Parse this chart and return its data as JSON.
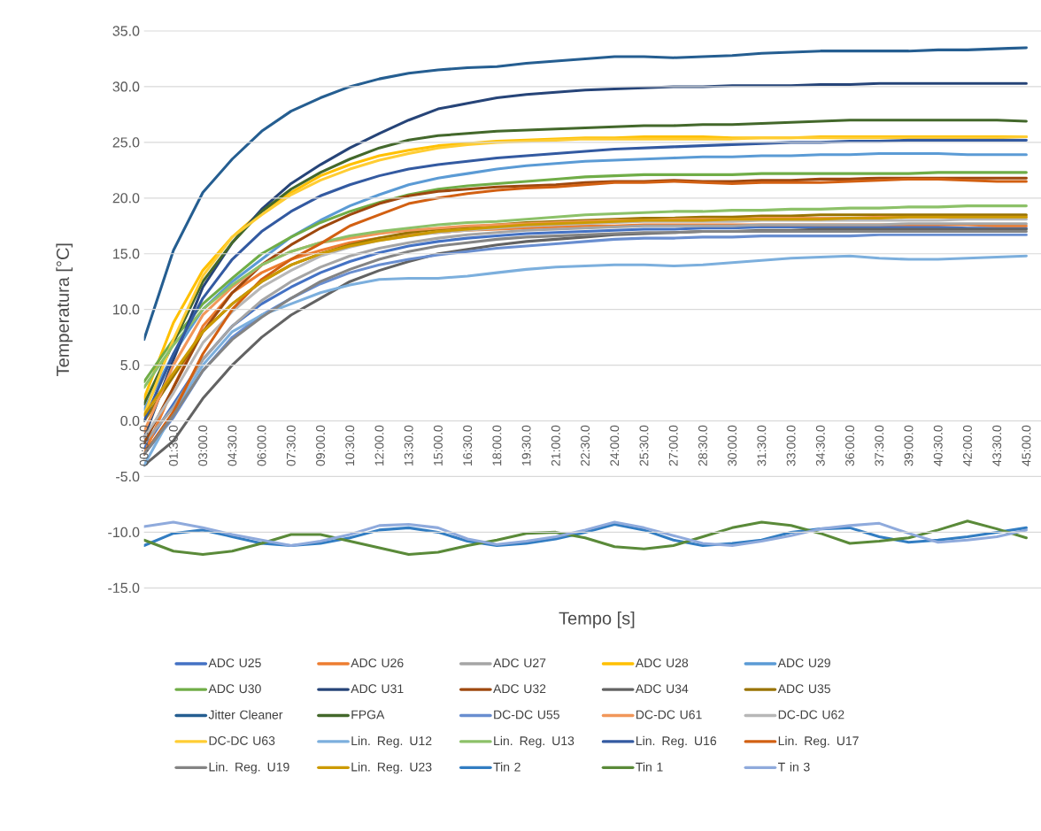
{
  "chart_data": {
    "type": "line",
    "xlabel": "Tempo [s]",
    "ylabel": "Temperatura [°C]",
    "ylim": [
      -15,
      35
    ],
    "categories": [
      "00:00.0",
      "01:30.0",
      "03:00.0",
      "04:30.0",
      "06:00.0",
      "07:30.0",
      "09:00.0",
      "10:30.0",
      "12:00.0",
      "13:30.0",
      "15:00.0",
      "16:30.0",
      "18:00.0",
      "19:30.0",
      "21:00.0",
      "22:30.0",
      "24:00.0",
      "25:30.0",
      "27:00.0",
      "28:30.0",
      "30:00.0",
      "31:30.0",
      "33:00.0",
      "34:30.0",
      "36:00.0",
      "37:30.0",
      "39:00.0",
      "40:30.0",
      "42:00.0",
      "43:30.0",
      "45:00.0"
    ],
    "yticks": [
      {
        "value": -15,
        "label": "-15.0"
      },
      {
        "value": -10,
        "label": "-10.0"
      },
      {
        "value": -5,
        "label": "-5.0"
      },
      {
        "value": 0,
        "label": "0.0"
      },
      {
        "value": 5,
        "label": "5.0"
      },
      {
        "value": 10,
        "label": "10.0"
      },
      {
        "value": 15,
        "label": "15.0"
      },
      {
        "value": 20,
        "label": "20.0"
      },
      {
        "value": 25,
        "label": "25.0"
      },
      {
        "value": 30,
        "label": "30.0"
      },
      {
        "value": 35,
        "label": "35.0"
      }
    ],
    "grid": "y",
    "legend": "bottom",
    "series": [
      {
        "name": "ADC U25",
        "color": "#4472c4",
        "values": [
          -2.5,
          1.5,
          5.5,
          8.5,
          10.5,
          12,
          13.3,
          14.3,
          15.1,
          15.7,
          16.1,
          16.4,
          16.6,
          16.8,
          16.9,
          17,
          17.1,
          17.2,
          17.2,
          17.3,
          17.3,
          17.4,
          17.4,
          17.4,
          17.4,
          17.4,
          17.4,
          17.4,
          17.3,
          17.3,
          17.3
        ]
      },
      {
        "name": "ADC U26",
        "color": "#ed7d31",
        "values": [
          -3,
          3,
          8.5,
          11.5,
          13.3,
          14.5,
          15.3,
          16,
          16.4,
          16.7,
          16.9,
          17.1,
          17.2,
          17.3,
          17.4,
          17.5,
          17.5,
          17.6,
          17.6,
          17.6,
          17.6,
          17.6,
          17.6,
          17.6,
          17.6,
          17.6,
          17.6,
          17.6,
          17.6,
          17.5,
          17.5
        ]
      },
      {
        "name": "ADC U27",
        "color": "#a5a5a5",
        "values": [
          -2,
          1.2,
          5.5,
          8.5,
          10.8,
          12.5,
          13.8,
          14.8,
          15.5,
          16,
          16.4,
          16.7,
          16.9,
          17.1,
          17.2,
          17.3,
          17.4,
          17.5,
          17.5,
          17.5,
          17.5,
          17.6,
          17.6,
          17.6,
          17.6,
          17.6,
          17.7,
          17.7,
          17.7,
          17.7,
          17.7
        ]
      },
      {
        "name": "ADC U28",
        "color": "#ffc000",
        "values": [
          2,
          8.8,
          13.5,
          16.5,
          18.8,
          20.5,
          22,
          23,
          23.8,
          24.3,
          24.7,
          24.9,
          25.1,
          25.2,
          25.3,
          25.4,
          25.4,
          25.5,
          25.5,
          25.5,
          25.4,
          25.4,
          25.4,
          25.5,
          25.5,
          25.5,
          25.5,
          25.5,
          25.5,
          25.5,
          25.5
        ]
      },
      {
        "name": "ADC U29",
        "color": "#5b9bd5",
        "values": [
          1,
          6,
          10,
          12.5,
          14.5,
          16.5,
          18,
          19.3,
          20.3,
          21.2,
          21.8,
          22.2,
          22.6,
          22.9,
          23.1,
          23.3,
          23.4,
          23.5,
          23.6,
          23.7,
          23.7,
          23.8,
          23.8,
          23.9,
          23.9,
          24,
          24,
          24,
          23.9,
          23.9,
          23.9
        ]
      },
      {
        "name": "ADC U30",
        "color": "#70ad47",
        "values": [
          3.5,
          7.3,
          10.5,
          12.8,
          15,
          16.5,
          17.8,
          18.8,
          19.6,
          20.3,
          20.8,
          21.1,
          21.3,
          21.5,
          21.7,
          21.9,
          22,
          22.1,
          22.1,
          22.1,
          22.1,
          22.2,
          22.2,
          22.2,
          22.2,
          22.2,
          22.2,
          22.3,
          22.3,
          22.3,
          22.3
        ]
      },
      {
        "name": "ADC U31",
        "color": "#264478",
        "values": [
          -1.5,
          5.5,
          12,
          16,
          19,
          21.3,
          23,
          24.5,
          25.8,
          27,
          28,
          28.5,
          29,
          29.3,
          29.5,
          29.7,
          29.8,
          29.9,
          30,
          30,
          30.1,
          30.1,
          30.1,
          30.2,
          30.2,
          30.3,
          30.3,
          30.3,
          30.3,
          30.3,
          30.3
        ]
      },
      {
        "name": "ADC U32",
        "color": "#9e480e",
        "values": [
          -2,
          3,
          8,
          11.5,
          14,
          15.8,
          17.3,
          18.5,
          19.5,
          20.2,
          20.6,
          20.8,
          21,
          21.1,
          21.2,
          21.4,
          21.5,
          21.5,
          21.6,
          21.5,
          21.5,
          21.6,
          21.6,
          21.7,
          21.7,
          21.8,
          21.8,
          21.8,
          21.8,
          21.8,
          21.8
        ]
      },
      {
        "name": "ADC U34",
        "color": "#636363",
        "values": [
          -4,
          -1.8,
          2,
          5,
          7.5,
          9.5,
          11,
          12.5,
          13.5,
          14.3,
          15,
          15.4,
          15.8,
          16.1,
          16.3,
          16.5,
          16.7,
          16.8,
          16.9,
          17,
          17,
          17.1,
          17.1,
          17.2,
          17.2,
          17.2,
          17.2,
          17.2,
          17.2,
          17.2,
          17.2
        ]
      },
      {
        "name": "ADC U35",
        "color": "#997300",
        "values": [
          0,
          4,
          8,
          10.5,
          12.5,
          14,
          15,
          15.8,
          16.4,
          16.9,
          17.2,
          17.4,
          17.6,
          17.8,
          17.9,
          18,
          18.1,
          18.2,
          18.2,
          18.3,
          18.3,
          18.4,
          18.4,
          18.5,
          18.5,
          18.5,
          18.5,
          18.5,
          18.5,
          18.5,
          18.5
        ]
      },
      {
        "name": "Jitter Cleaner",
        "color": "#255e91",
        "values": [
          7.3,
          15.3,
          20.5,
          23.5,
          26,
          27.8,
          29,
          30,
          30.7,
          31.2,
          31.5,
          31.7,
          31.8,
          32.1,
          32.3,
          32.5,
          32.7,
          32.7,
          32.6,
          32.7,
          32.8,
          33,
          33.1,
          33.2,
          33.2,
          33.2,
          33.2,
          33.3,
          33.3,
          33.4,
          33.5
        ]
      },
      {
        "name": "FPGA",
        "color": "#43682b",
        "values": [
          1.5,
          7,
          12.5,
          16,
          18.8,
          20.8,
          22.3,
          23.5,
          24.5,
          25.2,
          25.6,
          25.8,
          26,
          26.1,
          26.2,
          26.3,
          26.4,
          26.5,
          26.5,
          26.6,
          26.6,
          26.7,
          26.8,
          26.9,
          27,
          27,
          27,
          27,
          27,
          27,
          26.9
        ]
      },
      {
        "name": "DC-DC U55",
        "color": "#698ed0",
        "values": [
          -3,
          0.3,
          4.5,
          7.5,
          9.5,
          11,
          12.3,
          13.3,
          14,
          14.5,
          14.9,
          15.2,
          15.5,
          15.7,
          15.9,
          16.1,
          16.3,
          16.4,
          16.4,
          16.5,
          16.5,
          16.6,
          16.6,
          16.6,
          16.6,
          16.7,
          16.7,
          16.7,
          16.7,
          16.7,
          16.7
        ]
      },
      {
        "name": "DC-DC U61",
        "color": "#f1975a",
        "values": [
          -1,
          5,
          9.5,
          12,
          14,
          15.2,
          16,
          16.4,
          16.8,
          17.1,
          17.3,
          17.5,
          17.6,
          17.7,
          17.8,
          17.9,
          18,
          18,
          18.1,
          18.1,
          18.1,
          18.2,
          18.2,
          18.2,
          18.2,
          18.3,
          18.3,
          18.3,
          18.3,
          18.3,
          18.3
        ]
      },
      {
        "name": "DC-DC U62",
        "color": "#b7b7b7",
        "values": [
          -1.5,
          2.5,
          7,
          9.8,
          12,
          13.5,
          14.8,
          15.6,
          16.2,
          16.6,
          16.9,
          17.1,
          17.3,
          17.5,
          17.6,
          17.7,
          17.8,
          17.9,
          17.9,
          17.9,
          17.9,
          18,
          18,
          18,
          18,
          18,
          18,
          18,
          18.1,
          18.1,
          18.1
        ]
      },
      {
        "name": "DC-DC U63",
        "color": "#ffcd33",
        "values": [
          0.5,
          7.3,
          13,
          16.5,
          18.5,
          20.3,
          21.6,
          22.6,
          23.4,
          24,
          24.5,
          24.8,
          25,
          25.1,
          25.2,
          25.3,
          25.3,
          25.3,
          25.3,
          25.3,
          25.3,
          25.4,
          25.4,
          25.4,
          25.4,
          25.4,
          25.4,
          25.4,
          25.4,
          25.4,
          25.5
        ]
      },
      {
        "name": "Lin. Reg. U12",
        "color": "#7cafdd",
        "values": [
          -4,
          0.8,
          5,
          8,
          9.5,
          10.5,
          11.5,
          12.2,
          12.7,
          12.8,
          12.8,
          13,
          13.3,
          13.6,
          13.8,
          13.9,
          14,
          14,
          13.9,
          14,
          14.2,
          14.4,
          14.6,
          14.7,
          14.8,
          14.6,
          14.5,
          14.5,
          14.6,
          14.7,
          14.8
        ]
      },
      {
        "name": "Lin. Reg. U13",
        "color": "#8cc168",
        "values": [
          3,
          6.8,
          10,
          12.2,
          14,
          15.2,
          16,
          16.6,
          17,
          17.3,
          17.6,
          17.8,
          17.9,
          18.1,
          18.3,
          18.5,
          18.6,
          18.7,
          18.8,
          18.8,
          18.9,
          18.9,
          19,
          19,
          19.1,
          19.1,
          19.2,
          19.2,
          19.3,
          19.3,
          19.3
        ]
      },
      {
        "name": "Lin. Reg. U16",
        "color": "#335aa1",
        "values": [
          0,
          6,
          11,
          14.5,
          17,
          18.8,
          20.2,
          21.2,
          22,
          22.6,
          23,
          23.3,
          23.6,
          23.8,
          24,
          24.2,
          24.4,
          24.5,
          24.6,
          24.7,
          24.8,
          24.9,
          25,
          25,
          25.1,
          25.1,
          25.2,
          25.2,
          25.2,
          25.2,
          25.2
        ]
      },
      {
        "name": "Lin. Reg. U17",
        "color": "#d26012",
        "values": [
          -3,
          0.8,
          6,
          10,
          12.7,
          14.5,
          15.9,
          17.5,
          18.5,
          19.5,
          20,
          20.4,
          20.7,
          20.9,
          21,
          21.2,
          21.4,
          21.4,
          21.5,
          21.4,
          21.3,
          21.4,
          21.4,
          21.4,
          21.5,
          21.6,
          21.7,
          21.7,
          21.6,
          21.5,
          21.5
        ]
      },
      {
        "name": "Lin. Reg. U19",
        "color": "#848484",
        "values": [
          -3,
          0.5,
          4.5,
          7.3,
          9.3,
          11,
          12.5,
          13.6,
          14.5,
          15.2,
          15.7,
          16,
          16.3,
          16.5,
          16.6,
          16.7,
          16.8,
          16.9,
          16.9,
          17,
          17,
          17,
          17,
          17,
          17,
          17,
          17,
          17,
          17,
          17,
          17
        ]
      },
      {
        "name": "Lin. Reg. U23",
        "color": "#cc9a00",
        "values": [
          0.5,
          4.3,
          8,
          10.5,
          12.5,
          14,
          15,
          15.7,
          16.2,
          16.6,
          17,
          17.2,
          17.4,
          17.6,
          17.7,
          17.8,
          17.9,
          18,
          18,
          18,
          18.1,
          18.1,
          18.1,
          18.1,
          18.2,
          18.2,
          18.3,
          18.3,
          18.3,
          18.3,
          18.3
        ]
      },
      {
        "name": "Tin 2",
        "color": "#327dc2",
        "values": [
          -11.2,
          -10.1,
          -9.8,
          -10.4,
          -11,
          -11.2,
          -11,
          -10.5,
          -9.8,
          -9.6,
          -10,
          -10.8,
          -11.2,
          -11,
          -10.6,
          -10,
          -9.3,
          -9.8,
          -10.7,
          -11.2,
          -11,
          -10.7,
          -10,
          -9.7,
          -9.6,
          -10.4,
          -10.9,
          -10.7,
          -10.4,
          -10,
          -9.6
        ]
      },
      {
        "name": "Tin 1",
        "color": "#5a8a39",
        "values": [
          -10.7,
          -11.7,
          -12,
          -11.7,
          -11,
          -10.2,
          -10.2,
          -10.8,
          -11.4,
          -12,
          -11.8,
          -11.2,
          -10.7,
          -10.1,
          -10,
          -10.5,
          -11.3,
          -11.5,
          -11.2,
          -10.4,
          -9.6,
          -9.1,
          -9.4,
          -10.1,
          -11,
          -10.8,
          -10.5,
          -9.8,
          -9,
          -9.7,
          -10.5
        ]
      },
      {
        "name": "T in 3",
        "color": "#8faadc",
        "values": [
          -9.5,
          -9.1,
          -9.6,
          -10.2,
          -10.7,
          -11.2,
          -10.8,
          -10.2,
          -9.4,
          -9.3,
          -9.6,
          -10.6,
          -11.1,
          -10.8,
          -10.4,
          -9.8,
          -9.1,
          -9.6,
          -10.3,
          -11,
          -11.2,
          -10.8,
          -10.3,
          -9.7,
          -9.4,
          -9.2,
          -10.1,
          -10.9,
          -10.7,
          -10.4,
          -9.8
        ]
      }
    ]
  }
}
